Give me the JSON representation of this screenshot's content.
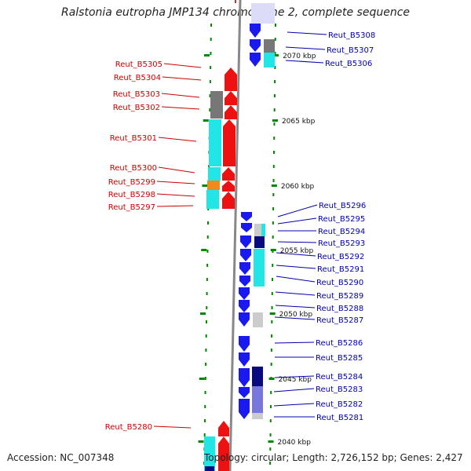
{
  "title": "Ralstonia eutropha JMP134 chromosome 2, complete sequence",
  "accession_text": "Accession: NC_007348",
  "topology_text": "Topology: circular; Length: 2,726,152 bp; Genes: 2,427",
  "colors": {
    "forward_gene": "#ee1111",
    "reverse_gene": "#1a1aee",
    "backbone": "#888888",
    "tick": "#008800",
    "label_left": "#cc0000",
    "label_right": "#0000aa",
    "cog_cyan": "#22e6e6",
    "cog_gray": "#777777",
    "cog_orange": "#f08a1a",
    "cog_navy": "#0a0a80",
    "cog_lightgray": "#cccccc",
    "cog_lavender": "#7777dd"
  },
  "scale_labels": [
    "2070 kbp",
    "2065 kbp",
    "2060 kbp",
    "2055 kbp",
    "2050 kbp",
    "2045 kbp",
    "2040 kbp"
  ],
  "left_gene_labels": [
    "Reut_B5305",
    "Reut_B5304",
    "Reut_B5303",
    "Reut_B5302",
    "Reut_B5301",
    "Reut_B5300",
    "Reut_B5299",
    "Reut_B5298",
    "Reut_B5297",
    "Reut_B5280"
  ],
  "right_gene_labels": [
    "Reut_B5308",
    "Reut_B5307",
    "Reut_B5306",
    "Reut_B5296",
    "Reut_B5295",
    "Reut_B5294",
    "Reut_B5293",
    "Reut_B5292",
    "Reut_B5291",
    "Reut_B5290",
    "Reut_B5289",
    "Reut_B5288",
    "Reut_B5287",
    "Reut_B5286",
    "Reut_B5285",
    "Reut_B5284",
    "Reut_B5283",
    "Reut_B5282",
    "Reut_B5281"
  ]
}
